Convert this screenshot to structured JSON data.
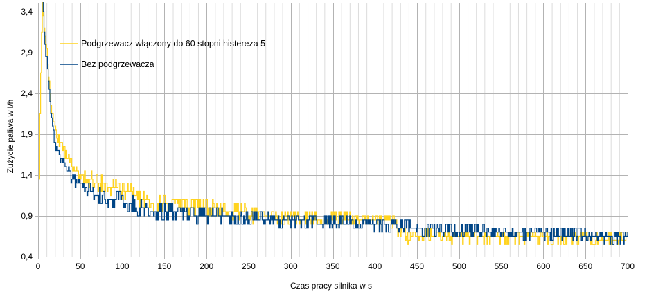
{
  "chart_data": {
    "type": "line",
    "title": "",
    "xlabel": "Czas pracy silnika w s",
    "ylabel": "Zużycie paliwa w l/h",
    "xlim": [
      0,
      700
    ],
    "ylim": [
      0.4,
      3.5
    ],
    "x_ticks": [
      0,
      50,
      100,
      150,
      200,
      250,
      300,
      350,
      400,
      450,
      500,
      550,
      600,
      650,
      700
    ],
    "x_tick_labels": [
      "0",
      "50",
      "100",
      "150",
      "200",
      "250",
      "300",
      "350",
      "400",
      "450",
      "500",
      "550",
      "600",
      "650",
      "700"
    ],
    "y_ticks": [
      0.4,
      0.9,
      1.4,
      1.9,
      2.4,
      2.9,
      3.4
    ],
    "y_tick_labels": [
      "0,4",
      "0,9",
      "1,4",
      "1,9",
      "2,4",
      "2,9",
      "3,4"
    ],
    "grid": true,
    "legend_position": "top-left",
    "series": [
      {
        "name": "Podgrzewacz włączony do 60 stopni histereza 5",
        "color": "#ffd320",
        "x": [
          0,
          2,
          5,
          8,
          10,
          12,
          15,
          18,
          20,
          25,
          30,
          35,
          40,
          45,
          50,
          55,
          60,
          70,
          80,
          90,
          100,
          110,
          120,
          130,
          140,
          150,
          160,
          170,
          180,
          190,
          200,
          210,
          220,
          230,
          240,
          250,
          260,
          270,
          280,
          290,
          300,
          320,
          340,
          360,
          380,
          400,
          420,
          430,
          440,
          450,
          460,
          480,
          500,
          520,
          540,
          560,
          580,
          600,
          620,
          640,
          660,
          680,
          700
        ],
        "values": [
          0.4,
          2.2,
          3.6,
          3.1,
          2.9,
          2.6,
          2.3,
          2.1,
          2.0,
          1.8,
          1.7,
          1.6,
          1.5,
          1.45,
          1.4,
          1.38,
          1.35,
          1.3,
          1.28,
          1.25,
          1.2,
          1.2,
          1.1,
          1.08,
          1.05,
          1.05,
          1.03,
          1.02,
          1.0,
          1.0,
          1.0,
          0.98,
          0.97,
          0.96,
          0.95,
          0.92,
          0.9,
          0.9,
          0.9,
          0.88,
          0.88,
          0.87,
          0.86,
          0.86,
          0.85,
          0.85,
          0.84,
          0.7,
          0.62,
          0.65,
          0.66,
          0.65,
          0.64,
          0.64,
          0.64,
          0.64,
          0.64,
          0.63,
          0.63,
          0.63,
          0.62,
          0.62,
          0.62
        ]
      },
      {
        "name": "Bez podgrzewacza",
        "color": "#004586",
        "x": [
          0,
          5,
          8,
          10,
          12,
          15,
          18,
          20,
          25,
          30,
          35,
          40,
          45,
          50,
          55,
          60,
          70,
          80,
          90,
          100,
          110,
          120,
          130,
          140,
          150,
          160,
          170,
          180,
          190,
          200,
          210,
          220,
          230,
          240,
          250,
          260,
          270,
          280,
          290,
          300,
          320,
          340,
          360,
          380,
          400,
          420,
          440,
          460,
          480,
          500,
          520,
          540,
          560,
          580,
          600,
          620,
          640,
          660,
          680,
          700
        ],
        "values": [
          3.6,
          3.6,
          3.0,
          2.8,
          2.5,
          2.2,
          1.9,
          1.8,
          1.65,
          1.55,
          1.45,
          1.35,
          1.3,
          1.3,
          1.25,
          1.2,
          1.15,
          1.12,
          1.1,
          1.08,
          1.05,
          1.0,
          0.98,
          0.96,
          0.95,
          0.94,
          0.93,
          0.92,
          0.91,
          0.9,
          0.9,
          0.89,
          0.88,
          0.88,
          0.87,
          0.86,
          0.86,
          0.85,
          0.84,
          0.84,
          0.83,
          0.82,
          0.81,
          0.8,
          0.79,
          0.78,
          0.76,
          0.74,
          0.72,
          0.72,
          0.71,
          0.7,
          0.7,
          0.69,
          0.68,
          0.67,
          0.66,
          0.65,
          0.64,
          0.63
        ]
      }
    ]
  }
}
